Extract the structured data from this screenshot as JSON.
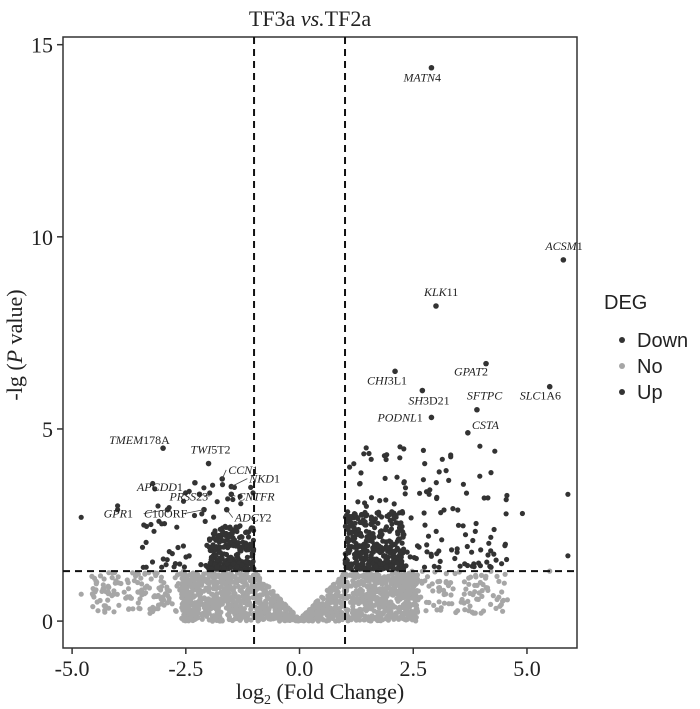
{
  "chart_data": {
    "type": "scatter",
    "title": "TF3a vs.TF2a",
    "title_parts": [
      "TF3a ",
      "vs.",
      "TF2a"
    ],
    "xlabel_parts": [
      "log",
      "2",
      " (Fold Change)"
    ],
    "ylabel_parts": [
      "-lg (",
      "P",
      " value)"
    ],
    "xlim": [
      -5.2,
      6.1
    ],
    "ylim": [
      -0.7,
      15.2
    ],
    "x_ticks": [
      -5.0,
      -2.5,
      0.0,
      2.5,
      5.0
    ],
    "x_tick_labels": [
      "-5.0",
      "-2.5",
      "0.0",
      "2.5",
      "5.0"
    ],
    "y_ticks": [
      0,
      5,
      10,
      15
    ],
    "y_tick_labels": [
      "0",
      "5",
      "10",
      "15"
    ],
    "thresholds": {
      "vlines": [
        -1,
        1
      ],
      "hline": 1.3
    },
    "grid": false,
    "legend": {
      "title": "DEG",
      "position": "right",
      "entries": [
        {
          "label": "Down",
          "color": "#333333"
        },
        {
          "label": "No",
          "color": "#a6a6a6"
        },
        {
          "label": "Up",
          "color": "#333333"
        }
      ]
    },
    "colors": {
      "Down": "#333333",
      "No": "#a6a6a6",
      "Up": "#333333"
    },
    "labeled_genes": [
      {
        "gene_italic": "MATN",
        "gene_suffix": "4",
        "x": 2.9,
        "y": 14.4,
        "category": "Up"
      },
      {
        "gene_italic": "ACSM",
        "gene_suffix": "1",
        "x": 5.8,
        "y": 9.4,
        "category": "Up"
      },
      {
        "gene_italic": "KLK",
        "gene_suffix": "11",
        "x": 3.0,
        "y": 8.2,
        "category": "Up"
      },
      {
        "gene_italic": "GPAT",
        "gene_suffix": "2",
        "x": 4.1,
        "y": 6.7,
        "category": "Up"
      },
      {
        "gene_italic": "CHI",
        "gene_suffix": "3L1",
        "x": 2.1,
        "y": 6.5,
        "category": "Up"
      },
      {
        "gene_italic": "SH",
        "gene_suffix": "3D21",
        "x": 2.7,
        "y": 6.0,
        "category": "Up"
      },
      {
        "gene_italic": "SLC",
        "gene_suffix": "1A6",
        "x": 5.5,
        "y": 6.1,
        "category": "Up"
      },
      {
        "gene_italic": "SFTPC",
        "gene_suffix": "",
        "x": 3.9,
        "y": 5.5,
        "category": "Up"
      },
      {
        "gene_italic": "PODNL",
        "gene_suffix": "1",
        "x": 2.9,
        "y": 5.3,
        "category": "Up"
      },
      {
        "gene_italic": "CSTA",
        "gene_suffix": "",
        "x": 3.7,
        "y": 4.9,
        "category": "Up"
      },
      {
        "gene_italic": "TMEM",
        "gene_suffix": "178A",
        "x": -3.0,
        "y": 4.5,
        "category": "Down"
      },
      {
        "gene_italic": "TWI",
        "gene_suffix": "5T2",
        "x": -2.0,
        "y": 4.1,
        "category": "Down"
      },
      {
        "gene_italic": "CCN",
        "gene_suffix": "1",
        "x": -1.7,
        "y": 3.7,
        "category": "Down"
      },
      {
        "gene_italic": "APCDD",
        "gene_suffix": "1",
        "x": -2.3,
        "y": 3.6,
        "category": "Down"
      },
      {
        "gene_italic": "NKD",
        "gene_suffix": "1",
        "x": -1.5,
        "y": 3.5,
        "category": "Down"
      },
      {
        "gene_italic": "PRSS",
        "gene_suffix": "23",
        "x": -2.2,
        "y": 3.3,
        "category": "Down"
      },
      {
        "gene_italic": "CNTFR",
        "gene_suffix": "",
        "x": -1.5,
        "y": 3.3,
        "category": "Down"
      },
      {
        "gene_italic": "GPR",
        "gene_suffix": "1",
        "x": -2.9,
        "y": 2.9,
        "category": "Down"
      },
      {
        "gene_italic": "C",
        "gene_suffix": "10ORF",
        "x": -2.1,
        "y": 2.9,
        "category": "Down"
      },
      {
        "gene_italic": "ADCY",
        "gene_suffix": "2",
        "x": -1.6,
        "y": 2.9,
        "category": "Down"
      }
    ]
  }
}
